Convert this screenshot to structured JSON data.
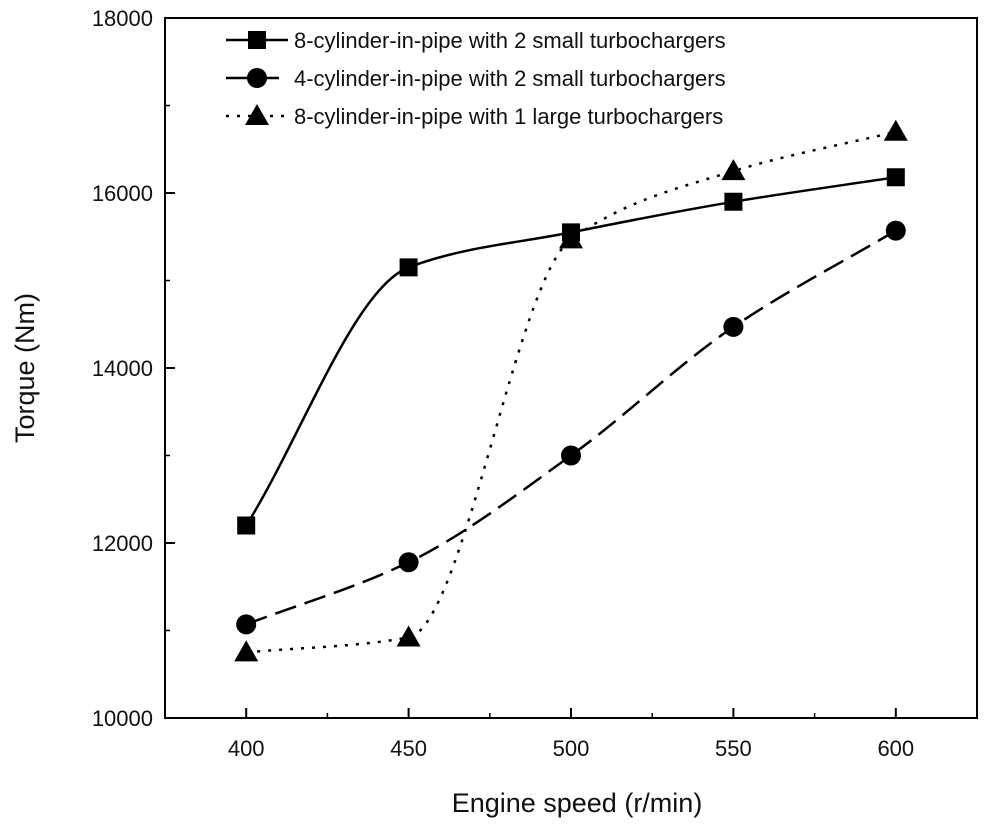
{
  "chart_data": {
    "type": "line",
    "xlabel": "Engine speed (r/min)",
    "ylabel": "Torque (Nm)",
    "xlim": [
      375,
      625
    ],
    "ylim": [
      10000,
      18000
    ],
    "x_ticks": [
      400,
      450,
      500,
      550,
      600
    ],
    "y_ticks": [
      10000,
      12000,
      14000,
      16000,
      18000
    ],
    "x": [
      400,
      450,
      500,
      550,
      600
    ],
    "grid": false,
    "legend_position": "top",
    "series": [
      {
        "name": "8-cylinder-in-pipe with 2 small turbochargers",
        "marker": "square",
        "line_style": "solid",
        "color": "#000000",
        "values": [
          12200,
          15150,
          15550,
          15900,
          16180
        ]
      },
      {
        "name": "4-cylinder-in-pipe with 2 small turbochargers",
        "marker": "circle",
        "line_style": "dashed",
        "color": "#000000",
        "values": [
          11070,
          11780,
          13000,
          14470,
          15570
        ]
      },
      {
        "name": "8-cylinder-in-pipe with 1 large turbochargers",
        "marker": "triangle",
        "line_style": "dotted",
        "color": "#000000",
        "values": [
          10750,
          10920,
          15470,
          16250,
          16700
        ]
      }
    ]
  }
}
